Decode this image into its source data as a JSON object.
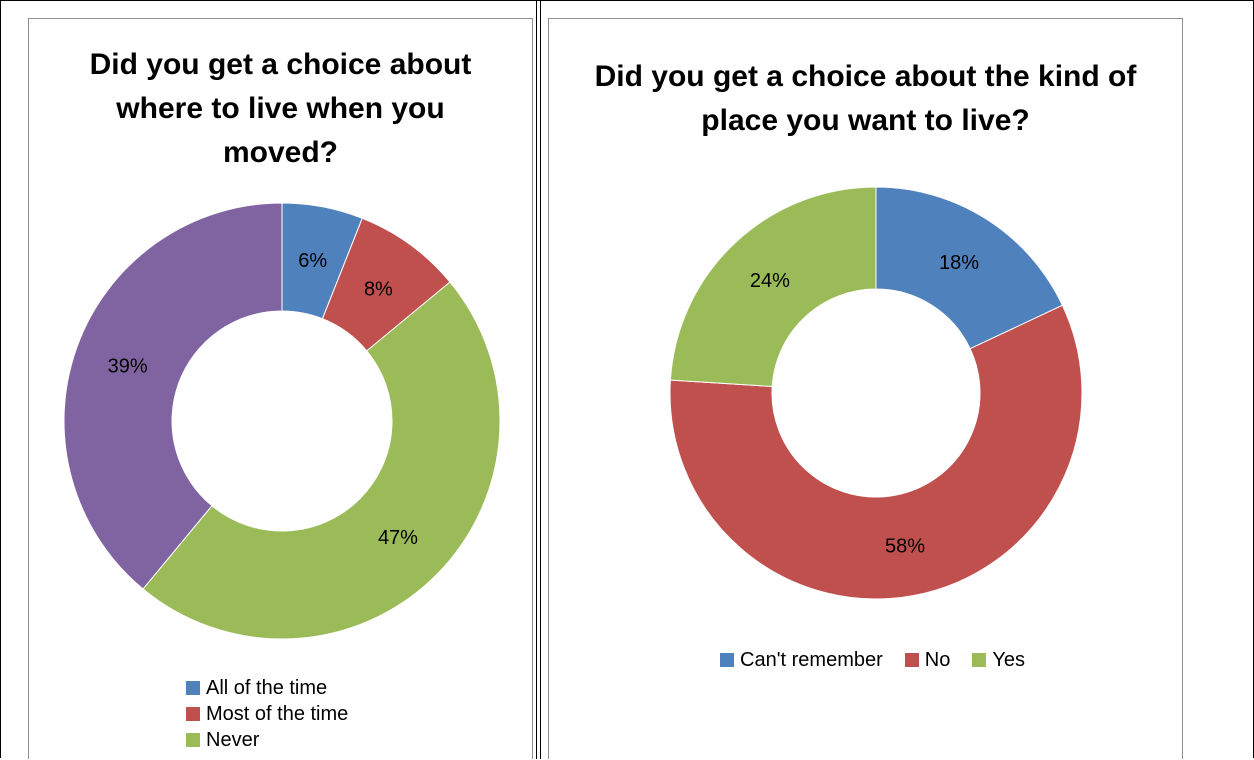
{
  "chart_data": [
    {
      "type": "pie",
      "title": "Did you get a choice about where to live when you moved?",
      "categories": [
        "All of the time",
        "Most of the time",
        "Never",
        ""
      ],
      "values": [
        6,
        8,
        47,
        39
      ],
      "value_labels": [
        "6%",
        "8%",
        "47%",
        "39%"
      ],
      "colors": [
        "#4f81bd",
        "#c0504d",
        "#9bbb59",
        "#8064a2"
      ],
      "legend_visible": [
        "All of the time",
        "Most of the time",
        "Never"
      ],
      "legend_placement": "bottom"
    },
    {
      "type": "pie",
      "title": "Did you get a choice about the kind of place you want to live?",
      "categories": [
        "Can't remember",
        "No",
        "Yes"
      ],
      "values": [
        18,
        58,
        24
      ],
      "value_labels": [
        "18%",
        "58%",
        "24%"
      ],
      "colors": [
        "#4f81bd",
        "#c0504d",
        "#9bbb59"
      ],
      "legend_visible": [
        "Can't remember",
        "No",
        "Yes"
      ],
      "legend_placement": "bottom"
    }
  ]
}
